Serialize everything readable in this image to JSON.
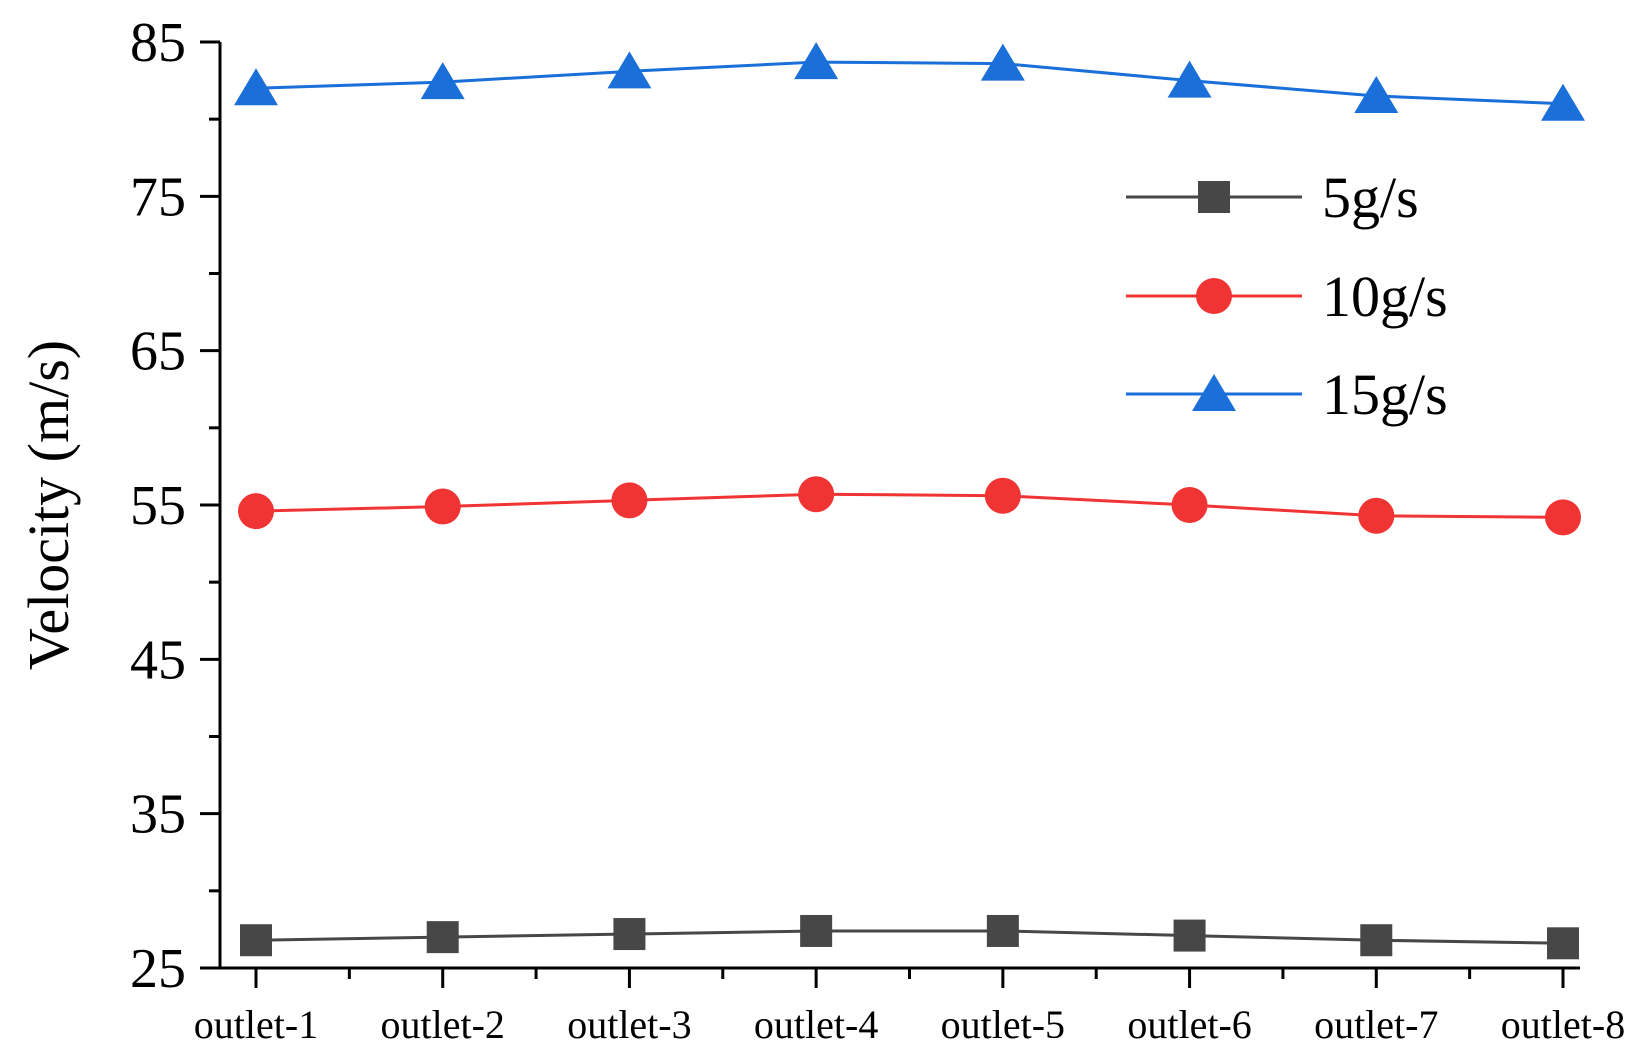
{
  "chart_data": {
    "type": "line",
    "xlabel": "",
    "ylabel": "Velocity (m/s)",
    "ylim": [
      25,
      85
    ],
    "yticks": [
      25,
      35,
      45,
      55,
      65,
      75,
      85
    ],
    "grid": false,
    "legend_position": "top-right",
    "categories": [
      "outlet-1",
      "outlet-2",
      "outlet-3",
      "outlet-4",
      "outlet-5",
      "outlet-6",
      "outlet-7",
      "outlet-8"
    ],
    "series": [
      {
        "name": "5g/s",
        "marker": "square",
        "color": "#474747",
        "values": [
          26.8,
          27.0,
          27.2,
          27.4,
          27.4,
          27.1,
          26.8,
          26.6
        ]
      },
      {
        "name": "10g/s",
        "marker": "circle",
        "color": "#f03434",
        "values": [
          54.6,
          54.9,
          55.3,
          55.7,
          55.6,
          55.0,
          54.3,
          54.2
        ]
      },
      {
        "name": "15g/s",
        "marker": "triangle",
        "color": "#1a6fd9",
        "values": [
          82.0,
          82.4,
          83.1,
          83.7,
          83.6,
          82.5,
          81.5,
          81.0
        ]
      }
    ]
  }
}
